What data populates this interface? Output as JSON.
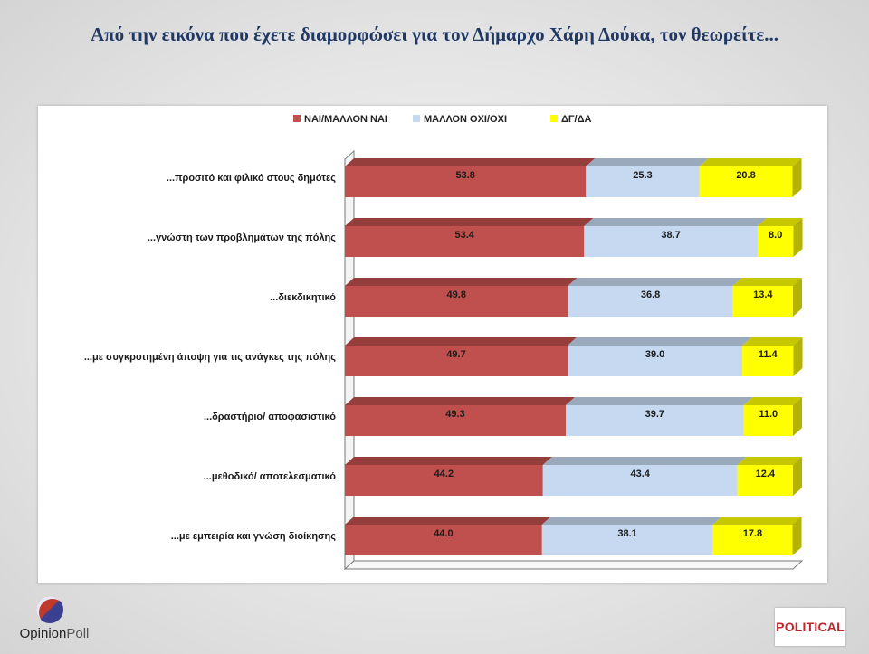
{
  "page": {
    "title": "Από την εικόνα που έχετε διαμορφώσει για τον Δήμαρχο Χάρη Δούκα, τον θεωρείτε..."
  },
  "chart_data": {
    "type": "bar",
    "orientation": "horizontal",
    "stacked": true,
    "categories": [
      "...προσιτό και φιλικό στους δημότες",
      "...γνώστη των προβλημάτων της πόλης",
      "...διεκδικητικό",
      "...με συγκροτημένη άποψη για τις ανάγκες της πόλης",
      "...δραστήριο/ αποφασιστικό",
      "...μεθοδικό/ αποτελεσματικό",
      "...με εμπειρία και γνώση διοίκησης"
    ],
    "series": [
      {
        "name": "ΝΑΙ/ΜΑΛΛΟΝ ΝΑΙ",
        "color": "#c0504d",
        "values": [
          53.8,
          53.4,
          49.8,
          49.7,
          49.3,
          44.2,
          44.0
        ]
      },
      {
        "name": "ΜΑΛΛΟΝ ΟΧΙ/ΟΧΙ",
        "color": "#c6d9f1",
        "values": [
          25.3,
          38.7,
          36.8,
          39.0,
          39.7,
          43.4,
          38.1
        ]
      },
      {
        "name": "ΔΓ/ΔΑ",
        "color": "#ffff00",
        "values": [
          20.8,
          8.0,
          13.4,
          11.4,
          11.0,
          12.4,
          17.8
        ]
      }
    ],
    "xlim": [
      0,
      100
    ],
    "legend": "top-center",
    "grid": false,
    "style": "3d"
  },
  "footer": {
    "logo_left_part1": "Opinion",
    "logo_left_part2": "Poll",
    "brand_right": "POLITICAL"
  }
}
